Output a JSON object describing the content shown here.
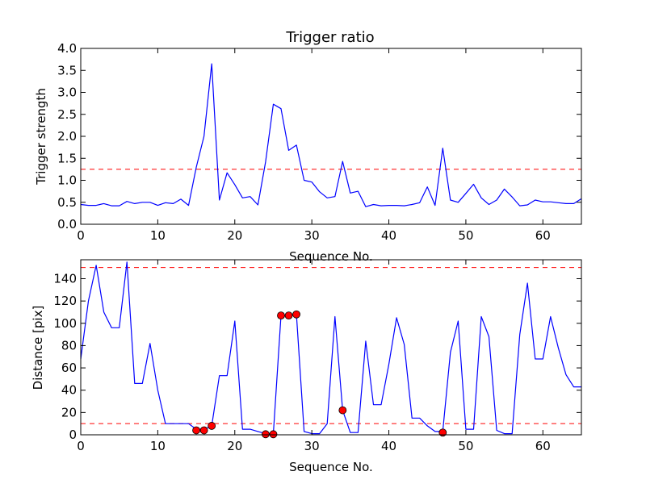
{
  "chart_data": [
    {
      "type": "line",
      "title": "Trigger ratio",
      "xlabel": "Sequence No.",
      "ylabel": "Trigger strength",
      "xlim": [
        0,
        65
      ],
      "ylim": [
        0,
        4.0
      ],
      "xticks": [
        "0",
        "10",
        "20",
        "30",
        "40",
        "50",
        "60"
      ],
      "yticks": [
        "0.0",
        "0.5",
        "1.0",
        "1.5",
        "2.0",
        "2.5",
        "3.0",
        "3.5",
        "4.0"
      ],
      "grid": false,
      "series": [
        {
          "color": "#0000ff",
          "x": [
            0,
            1,
            2,
            3,
            4,
            5,
            6,
            7,
            8,
            9,
            10,
            11,
            12,
            13,
            14,
            15,
            16,
            17,
            18,
            19,
            20,
            21,
            22,
            23,
            24,
            25,
            26,
            27,
            28,
            29,
            30,
            31,
            32,
            33,
            34,
            35,
            36,
            37,
            38,
            39,
            40,
            41,
            42,
            43,
            44,
            45,
            46,
            47,
            48,
            49,
            50,
            51,
            52,
            53,
            54,
            55,
            56,
            57,
            58,
            59,
            60,
            61,
            62,
            63,
            64,
            65
          ],
          "y": [
            0.45,
            0.43,
            0.43,
            0.47,
            0.42,
            0.42,
            0.52,
            0.47,
            0.5,
            0.5,
            0.43,
            0.49,
            0.47,
            0.57,
            0.43,
            1.3,
            2.0,
            3.65,
            0.55,
            1.17,
            0.9,
            0.6,
            0.63,
            0.44,
            1.42,
            2.73,
            2.63,
            1.68,
            1.8,
            1.0,
            0.96,
            0.74,
            0.6,
            0.63,
            1.43,
            0.71,
            0.75,
            0.4,
            0.45,
            0.42,
            0.43,
            0.43,
            0.42,
            0.45,
            0.49,
            0.85,
            0.43,
            1.73,
            0.55,
            0.5,
            0.7,
            0.91,
            0.6,
            0.45,
            0.55,
            0.8,
            0.62,
            0.42,
            0.44,
            0.55,
            0.51,
            0.51,
            0.49,
            0.47,
            0.47,
            0.58
          ]
        }
      ],
      "threshold_lines": [
        {
          "y": 1.25,
          "color": "#ff0000",
          "style": "dashed"
        }
      ]
    },
    {
      "type": "line",
      "title": "",
      "xlabel": "Sequence No.",
      "ylabel": "Distance [pix]",
      "xlim": [
        0,
        65
      ],
      "ylim": [
        0,
        157
      ],
      "xticks": [
        "0",
        "10",
        "20",
        "30",
        "40",
        "50",
        "60"
      ],
      "yticks": [
        "0",
        "20",
        "40",
        "60",
        "80",
        "100",
        "120",
        "140"
      ],
      "grid": false,
      "series": [
        {
          "color": "#0000ff",
          "x": [
            0,
            1,
            2,
            3,
            4,
            5,
            6,
            7,
            8,
            9,
            10,
            11,
            12,
            13,
            14,
            15,
            16,
            17,
            18,
            19,
            20,
            21,
            22,
            23,
            24,
            25,
            26,
            27,
            28,
            29,
            30,
            31,
            32,
            33,
            34,
            35,
            36,
            37,
            38,
            39,
            40,
            41,
            42,
            43,
            44,
            45,
            46,
            47,
            48,
            49,
            50,
            51,
            52,
            53,
            54,
            55,
            56,
            57,
            58,
            59,
            60,
            61,
            62,
            63,
            64,
            65
          ],
          "y": [
            68,
            120,
            152,
            110,
            96,
            96,
            155,
            46,
            46,
            82,
            40,
            10,
            10,
            10,
            10,
            5,
            5,
            8,
            53,
            53,
            102,
            5,
            5,
            3,
            1,
            1,
            107,
            107,
            108,
            3,
            1,
            1,
            10,
            106,
            22,
            2,
            2,
            84,
            27,
            27,
            63,
            105,
            81,
            15,
            15,
            8,
            3,
            3,
            74,
            102,
            5,
            5,
            106,
            88,
            4,
            1,
            1,
            90,
            136,
            68,
            68,
            106,
            78,
            54,
            43,
            43
          ]
        },
        {
          "color": "#ff0000",
          "style": "markers",
          "x": [
            15,
            16,
            17,
            24,
            25,
            26,
            27,
            28,
            34,
            47
          ],
          "y": [
            4,
            4,
            8,
            0.5,
            0.5,
            107,
            107,
            108,
            22,
            2
          ]
        }
      ],
      "threshold_lines": [
        {
          "y": 150,
          "color": "#ff0000",
          "style": "dashed"
        },
        {
          "y": 10,
          "color": "#ff0000",
          "style": "dashed"
        }
      ]
    }
  ]
}
